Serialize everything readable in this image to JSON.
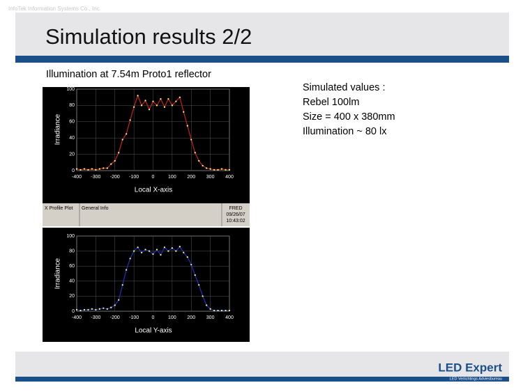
{
  "header": {
    "company": "InfoTek Information Systems Co., Inc.",
    "title": "Simulation results 2/2"
  },
  "caption": "Illumination at 7.54m Proto1 reflector",
  "notes": [
    "Simulated values :",
    "Rebel 100lm",
    "Size = 400 x 380mm",
    "Illumination ~ 80 lx"
  ],
  "status_bar": {
    "tab": "X Profile Plot",
    "info": "General Info",
    "app": "FRED",
    "date": "09/26/07",
    "time": "10:43:02"
  },
  "footer": {
    "logo": "LED Expert",
    "tagline": "LED Verlichtings Adviesbureau"
  },
  "chart_data": [
    {
      "type": "line",
      "xlabel": "Local X-axis",
      "ylabel": "Irradiance",
      "x": [
        -400,
        -380,
        -360,
        -340,
        -320,
        -300,
        -280,
        -260,
        -240,
        -220,
        -200,
        -180,
        -160,
        -140,
        -120,
        -100,
        -80,
        -60,
        -40,
        -20,
        0,
        20,
        40,
        60,
        80,
        100,
        120,
        140,
        160,
        180,
        200,
        220,
        240,
        260,
        280,
        300,
        320,
        340,
        360,
        380,
        400
      ],
      "series": [
        {
          "color": "#cc2020",
          "marker_color": "#ffff80",
          "values": [
            2,
            1,
            2,
            1,
            2,
            1,
            2,
            3,
            3,
            8,
            12,
            22,
            38,
            45,
            62,
            78,
            92,
            80,
            86,
            75,
            85,
            80,
            88,
            78,
            88,
            80,
            85,
            90,
            72,
            55,
            38,
            22,
            12,
            6,
            3,
            2,
            1,
            1,
            2,
            1,
            1
          ]
        }
      ],
      "xlim": [
        -400,
        400
      ],
      "xticks": [
        -400,
        -300,
        -200,
        -100,
        0,
        100,
        200,
        300,
        400
      ],
      "ylim": [
        0,
        100
      ],
      "yticks": [
        0,
        20,
        40,
        60,
        80,
        100
      ],
      "grid": true
    },
    {
      "type": "line",
      "xlabel": "Local Y-axis",
      "ylabel": "Irradiance",
      "x": [
        -400,
        -380,
        -360,
        -340,
        -320,
        -300,
        -280,
        -260,
        -240,
        -220,
        -200,
        -180,
        -160,
        -140,
        -120,
        -100,
        -80,
        -60,
        -40,
        -20,
        0,
        20,
        40,
        60,
        80,
        100,
        120,
        140,
        160,
        180,
        200,
        220,
        240,
        260,
        280,
        300,
        320,
        340,
        360,
        380,
        400
      ],
      "series": [
        {
          "color": "#2030c0",
          "marker_color": "#ffff80",
          "values": [
            2,
            1,
            2,
            2,
            3,
            2,
            3,
            4,
            3,
            5,
            8,
            15,
            35,
            55,
            70,
            80,
            85,
            78,
            82,
            80,
            76,
            82,
            75,
            85,
            80,
            84,
            80,
            86,
            78,
            72,
            62,
            48,
            35,
            20,
            8,
            3,
            1,
            1,
            1,
            1,
            1
          ]
        }
      ],
      "xlim": [
        -400,
        400
      ],
      "xticks": [
        -400,
        -300,
        -200,
        -100,
        0,
        100,
        200,
        300,
        400
      ],
      "ylim": [
        0,
        100
      ],
      "yticks": [
        0,
        20,
        40,
        60,
        80,
        100
      ],
      "grid": true
    }
  ]
}
